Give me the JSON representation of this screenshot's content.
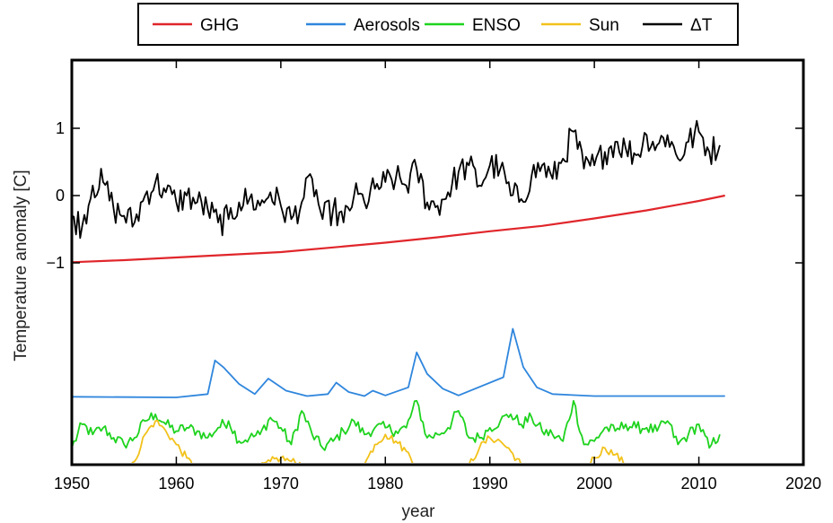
{
  "chart_data": {
    "type": "line",
    "xlabel": "year",
    "ylabel": "Temperature anomaly [C]",
    "xlim": [
      1950,
      2020
    ],
    "ylim": [
      -4.05,
      2.05
    ],
    "xticks": [
      1950,
      1960,
      1970,
      1980,
      1990,
      2000,
      2010,
      2020
    ],
    "xtick_labels": [
      "1950",
      "1960",
      "1970",
      "1980",
      "1990",
      "2000",
      "2010",
      "2020"
    ],
    "yticks": [
      -1,
      0,
      1
    ],
    "ytick_labels": [
      "−1",
      "0",
      "1"
    ],
    "grid": false,
    "legend": {
      "position": "top",
      "entries": [
        "GHG",
        "Aerosols",
        "ENSO",
        "Sun",
        "ΔT"
      ]
    },
    "series": [
      {
        "name": "GHG",
        "color": "#e0262b",
        "x": [
          1950,
          1955,
          1960,
          1965,
          1970,
          1975,
          1980,
          1985,
          1990,
          1995,
          2000,
          2005,
          2010,
          2012.5
        ],
        "y": [
          -0.99,
          -0.96,
          -0.92,
          -0.88,
          -0.84,
          -0.77,
          -0.7,
          -0.62,
          -0.53,
          -0.45,
          -0.34,
          -0.22,
          -0.08,
          0.0
        ]
      },
      {
        "name": "Aerosols",
        "color": "#2f86dd",
        "x": [
          1950,
          1960,
          1963,
          1963.7,
          1964.5,
          1966,
          1967.5,
          1968.8,
          1970.5,
          1972.5,
          1974.5,
          1975.3,
          1976.5,
          1978,
          1978.8,
          1980,
          1982.2,
          1983,
          1984,
          1985.5,
          1987,
          1991.3,
          1992.2,
          1993.2,
          1994.5,
          1996,
          2000,
          2012.5
        ],
        "y": [
          -2.99,
          -3.0,
          -2.95,
          -2.45,
          -2.55,
          -2.8,
          -2.95,
          -2.72,
          -2.9,
          -2.98,
          -2.95,
          -2.78,
          -2.92,
          -2.98,
          -2.9,
          -2.97,
          -2.85,
          -2.33,
          -2.65,
          -2.87,
          -2.97,
          -2.7,
          -1.98,
          -2.55,
          -2.85,
          -2.95,
          -2.98,
          -2.98
        ]
      },
      {
        "name": "ENSO",
        "color": "#1ed31e",
        "x": [
          1950,
          1951,
          1952,
          1953,
          1954,
          1955,
          1956,
          1957,
          1958,
          1959,
          1960,
          1961,
          1962,
          1963,
          1964,
          1965,
          1966,
          1967,
          1968,
          1969,
          1970,
          1971,
          1972,
          1973,
          1974,
          1975,
          1976,
          1977,
          1978,
          1979,
          1980,
          1981,
          1982,
          1983,
          1984,
          1985,
          1986,
          1987,
          1988,
          1989,
          1990,
          1991,
          1992,
          1993,
          1994,
          1995,
          1996,
          1997,
          1998,
          1999,
          2000,
          2001,
          2002,
          2003,
          2004,
          2005,
          2006,
          2007,
          2008,
          2009,
          2010,
          2011,
          2012
        ],
        "y": [
          -3.75,
          -3.4,
          -3.55,
          -3.45,
          -3.6,
          -3.7,
          -3.6,
          -3.35,
          -3.25,
          -3.4,
          -3.5,
          -3.45,
          -3.5,
          -3.6,
          -3.45,
          -3.35,
          -3.65,
          -3.6,
          -3.55,
          -3.3,
          -3.45,
          -3.7,
          -3.2,
          -3.55,
          -3.75,
          -3.65,
          -3.5,
          -3.35,
          -3.55,
          -3.45,
          -3.45,
          -3.5,
          -3.45,
          -3.05,
          -3.6,
          -3.55,
          -3.45,
          -3.2,
          -3.6,
          -3.6,
          -3.45,
          -3.35,
          -3.25,
          -3.4,
          -3.3,
          -3.5,
          -3.55,
          -3.65,
          -3.05,
          -3.7,
          -3.65,
          -3.45,
          -3.5,
          -3.4,
          -3.45,
          -3.45,
          -3.5,
          -3.35,
          -3.7,
          -3.55,
          -3.4,
          -3.75,
          -3.55
        ]
      },
      {
        "name": "Sun",
        "color": "#f2c21b",
        "x": [
          1950,
          1951,
          1952,
          1953,
          1954,
          1955,
          1956,
          1957,
          1958,
          1959,
          1960,
          1961,
          1962,
          1963,
          1964,
          1965,
          1966,
          1967,
          1968,
          1969,
          1970,
          1971,
          1972,
          1973,
          1974,
          1975,
          1976,
          1977,
          1978,
          1979,
          1980,
          1981,
          1982,
          1983,
          1984,
          1985,
          1986,
          1987,
          1988,
          1989,
          1990,
          1991,
          1992,
          1993,
          1994,
          1995,
          1996,
          1997,
          1998,
          1999,
          2000,
          2001,
          2002,
          2003,
          2004,
          2005,
          2006,
          2007,
          2008,
          2009,
          2010,
          2011,
          2012
        ],
        "y": [
          -4.0,
          -4.2,
          -4.35,
          -4.45,
          -4.45,
          -4.3,
          -3.95,
          -3.55,
          -3.35,
          -3.5,
          -3.7,
          -3.9,
          -4.1,
          -4.25,
          -4.35,
          -4.4,
          -4.35,
          -4.2,
          -4.05,
          -3.95,
          -3.9,
          -3.95,
          -4.0,
          -4.1,
          -4.2,
          -4.3,
          -4.35,
          -4.25,
          -4.0,
          -3.7,
          -3.55,
          -3.65,
          -3.8,
          -4.0,
          -4.2,
          -4.35,
          -4.4,
          -4.25,
          -4.0,
          -3.75,
          -3.6,
          -3.65,
          -3.8,
          -4.0,
          -4.25,
          -4.4,
          -4.45,
          -4.4,
          -4.2,
          -4.05,
          -3.9,
          -3.75,
          -3.85,
          -4.0,
          -4.15,
          -4.3,
          -4.4,
          -4.45,
          -4.45,
          -4.4,
          -4.3,
          -4.15,
          -4.1
        ]
      },
      {
        "name": "ΔT",
        "color": "#000000",
        "x": [
          1950,
          1951,
          1952,
          1953,
          1954,
          1955,
          1956,
          1957,
          1958,
          1959,
          1960,
          1961,
          1962,
          1963,
          1964,
          1965,
          1966,
          1967,
          1968,
          1969,
          1970,
          1971,
          1972,
          1973,
          1974,
          1975,
          1976,
          1977,
          1978,
          1979,
          1980,
          1981,
          1982,
          1983,
          1984,
          1985,
          1986,
          1987,
          1988,
          1989,
          1990,
          1991,
          1992,
          1993,
          1994,
          1995,
          1996,
          1997,
          1998,
          1999,
          2000,
          2001,
          2002,
          2003,
          2004,
          2005,
          2006,
          2007,
          2008,
          2009,
          2010,
          2011,
          2012
        ],
        "y": [
          -0.3,
          -0.45,
          0.15,
          0.2,
          -0.2,
          -0.3,
          -0.4,
          0.0,
          0.2,
          0.05,
          -0.1,
          0.0,
          -0.1,
          -0.2,
          -0.4,
          -0.35,
          -0.1,
          -0.05,
          -0.15,
          0.05,
          -0.15,
          -0.35,
          -0.1,
          0.25,
          -0.35,
          -0.2,
          -0.4,
          0.0,
          -0.1,
          0.1,
          0.2,
          0.25,
          0.15,
          0.4,
          -0.1,
          -0.15,
          0.05,
          0.35,
          0.45,
          0.15,
          0.45,
          0.4,
          0.0,
          -0.05,
          0.3,
          0.45,
          0.25,
          0.55,
          0.95,
          0.4,
          0.45,
          0.65,
          0.8,
          0.7,
          0.6,
          0.9,
          0.75,
          0.9,
          0.55,
          0.8,
          0.95,
          0.65,
          0.75
        ]
      }
    ]
  }
}
